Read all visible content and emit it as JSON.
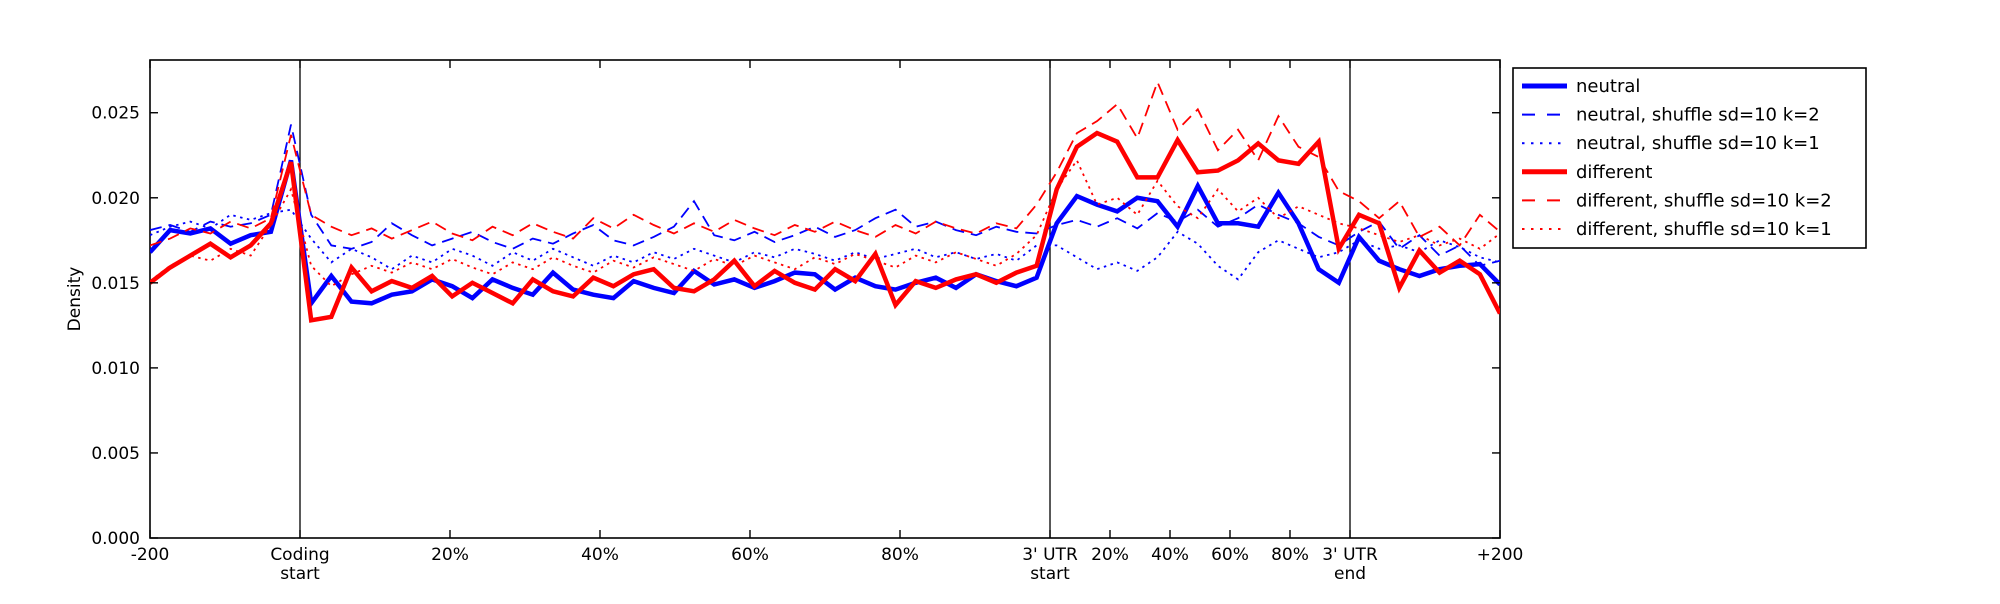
{
  "figure": {
    "background": "#ffffff",
    "title": ""
  },
  "chart_data": {
    "type": "line",
    "title": "",
    "xlabel": "",
    "ylabel": "Density",
    "grid": false,
    "legend_position": "outside-right",
    "ylim": [
      0,
      0.0281
    ],
    "yticks": {
      "values": [
        0.0,
        0.005,
        0.01,
        0.015,
        0.02,
        0.025
      ],
      "labels": [
        "0.000",
        "0.005",
        "0.010",
        "0.015",
        "0.020",
        "0.025"
      ]
    },
    "x_axis": {
      "kind": "composite-fraction",
      "note": "x axis is a metagene composite: -200nt .. coding start, CDS 0-100%, 3' UTR 0-100%, 3' UTR end .. +200nt; tick positions given as fraction 0..1 of plot width",
      "ticks": [
        {
          "f": 0.0,
          "lines": [
            "-200"
          ]
        },
        {
          "f": 0.11111,
          "lines": [
            "Coding",
            "start"
          ]
        },
        {
          "f": 0.22222,
          "lines": [
            "20%"
          ]
        },
        {
          "f": 0.33333,
          "lines": [
            "40%"
          ]
        },
        {
          "f": 0.44444,
          "lines": [
            "60%"
          ]
        },
        {
          "f": 0.55556,
          "lines": [
            "80%"
          ]
        },
        {
          "f": 0.66667,
          "lines": [
            "3' UTR",
            "start"
          ]
        },
        {
          "f": 0.71111,
          "lines": [
            "20%"
          ]
        },
        {
          "f": 0.75556,
          "lines": [
            "40%"
          ]
        },
        {
          "f": 0.8,
          "lines": [
            "60%"
          ]
        },
        {
          "f": 0.84444,
          "lines": [
            "80%"
          ]
        },
        {
          "f": 0.88889,
          "lines": [
            "3' UTR",
            "end"
          ]
        },
        {
          "f": 1.0,
          "lines": [
            "+200"
          ]
        }
      ],
      "vlines": [
        {
          "f": 0.11111,
          "label": "Coding start"
        },
        {
          "f": 0.66667,
          "label": "3' UTR start"
        },
        {
          "f": 0.88889,
          "label": "3' UTR end"
        }
      ]
    },
    "x_sampling": "y arrays are sampled uniformly in fraction 0..1 across the plot width",
    "series": [
      {
        "label": "neutral",
        "color": "#0000ff",
        "style": "solid",
        "width": "thick",
        "y": [
          0.0168,
          0.0181,
          0.0179,
          0.0182,
          0.0173,
          0.0178,
          0.018,
          0.0222,
          0.0138,
          0.0154,
          0.0139,
          0.0138,
          0.0143,
          0.0145,
          0.0152,
          0.0148,
          0.0141,
          0.0152,
          0.0147,
          0.0143,
          0.0156,
          0.0146,
          0.0143,
          0.0141,
          0.0151,
          0.0147,
          0.0144,
          0.0157,
          0.0149,
          0.0152,
          0.0147,
          0.0151,
          0.0156,
          0.0155,
          0.0146,
          0.0153,
          0.0148,
          0.0146,
          0.015,
          0.0153,
          0.0147,
          0.0155,
          0.0151,
          0.0148,
          0.0153,
          0.0185,
          0.0201,
          0.0196,
          0.0192,
          0.02,
          0.0198,
          0.0183,
          0.0207,
          0.0185,
          0.0185,
          0.0183,
          0.0203,
          0.0185,
          0.0158,
          0.015,
          0.0177,
          0.0163,
          0.0158,
          0.0154,
          0.0158,
          0.016,
          0.0161,
          0.0149
        ]
      },
      {
        "label": "neutral, shuffle sd=10 k=2",
        "color": "#0000ff",
        "style": "dashed",
        "width": "thin",
        "y": [
          0.0181,
          0.0184,
          0.018,
          0.0186,
          0.0183,
          0.0185,
          0.019,
          0.0243,
          0.019,
          0.0172,
          0.017,
          0.0174,
          0.0185,
          0.0178,
          0.0172,
          0.0176,
          0.018,
          0.0174,
          0.017,
          0.0176,
          0.0173,
          0.0179,
          0.0184,
          0.0175,
          0.0172,
          0.0177,
          0.0183,
          0.0198,
          0.0178,
          0.0175,
          0.018,
          0.0174,
          0.0178,
          0.0183,
          0.0177,
          0.0181,
          0.0188,
          0.0193,
          0.0183,
          0.0186,
          0.0181,
          0.0178,
          0.0183,
          0.018,
          0.0179,
          0.0184,
          0.0187,
          0.0183,
          0.0188,
          0.0182,
          0.0191,
          0.0186,
          0.0193,
          0.0183,
          0.0188,
          0.0196,
          0.019,
          0.0185,
          0.0177,
          0.0172,
          0.018,
          0.0186,
          0.017,
          0.0178,
          0.0166,
          0.0172,
          0.016,
          0.0163
        ]
      },
      {
        "label": "neutral, shuffle sd=10 k=1",
        "color": "#0000ff",
        "style": "dotted",
        "width": "thin",
        "y": [
          0.0178,
          0.0183,
          0.0186,
          0.0182,
          0.019,
          0.0187,
          0.0191,
          0.0193,
          0.0176,
          0.0162,
          0.017,
          0.0165,
          0.0158,
          0.0166,
          0.0162,
          0.017,
          0.0166,
          0.016,
          0.0168,
          0.0163,
          0.017,
          0.0165,
          0.016,
          0.0166,
          0.0162,
          0.0168,
          0.0164,
          0.017,
          0.0166,
          0.0162,
          0.0168,
          0.0165,
          0.017,
          0.0167,
          0.0163,
          0.0168,
          0.0164,
          0.0167,
          0.017,
          0.0165,
          0.0168,
          0.0164,
          0.0167,
          0.0163,
          0.0172,
          0.0172,
          0.0165,
          0.0158,
          0.0162,
          0.0157,
          0.0165,
          0.018,
          0.0173,
          0.016,
          0.0152,
          0.0168,
          0.0175,
          0.017,
          0.0165,
          0.0168,
          0.0175,
          0.017,
          0.0172,
          0.0168,
          0.0175,
          0.0171,
          0.0165,
          0.0162
        ]
      },
      {
        "label": "different",
        "color": "#ff0000",
        "style": "solid",
        "width": "thick",
        "y": [
          0.015,
          0.0159,
          0.0166,
          0.0173,
          0.0165,
          0.0172,
          0.0185,
          0.0221,
          0.0128,
          0.013,
          0.0159,
          0.0145,
          0.0151,
          0.0147,
          0.0154,
          0.0142,
          0.015,
          0.0144,
          0.0138,
          0.0152,
          0.0145,
          0.0142,
          0.0153,
          0.0148,
          0.0155,
          0.0158,
          0.0147,
          0.0145,
          0.0152,
          0.0163,
          0.0148,
          0.0157,
          0.015,
          0.0146,
          0.0158,
          0.0151,
          0.0167,
          0.0137,
          0.0151,
          0.0147,
          0.0152,
          0.0155,
          0.015,
          0.0156,
          0.016,
          0.0205,
          0.023,
          0.0238,
          0.0233,
          0.0212,
          0.0212,
          0.0234,
          0.0215,
          0.0216,
          0.0222,
          0.0232,
          0.0222,
          0.022,
          0.0233,
          0.017,
          0.019,
          0.0185,
          0.0147,
          0.0169,
          0.0156,
          0.0163,
          0.0155,
          0.0132
        ]
      },
      {
        "label": "different, shuffle sd=10 k=2",
        "color": "#ff0000",
        "style": "dashed",
        "width": "thin",
        "y": [
          0.0172,
          0.0176,
          0.0182,
          0.0179,
          0.0186,
          0.0182,
          0.0188,
          0.0237,
          0.019,
          0.0183,
          0.0178,
          0.0182,
          0.0176,
          0.0181,
          0.0186,
          0.0179,
          0.0175,
          0.0183,
          0.0178,
          0.0185,
          0.018,
          0.0176,
          0.0188,
          0.0182,
          0.019,
          0.0184,
          0.0179,
          0.0185,
          0.018,
          0.0187,
          0.0182,
          0.0178,
          0.0184,
          0.018,
          0.0186,
          0.0181,
          0.0177,
          0.0184,
          0.0179,
          0.0186,
          0.0182,
          0.0179,
          0.0185,
          0.0182,
          0.0196,
          0.0215,
          0.0238,
          0.0245,
          0.0255,
          0.0235,
          0.0268,
          0.024,
          0.0252,
          0.0228,
          0.024,
          0.0222,
          0.0248,
          0.023,
          0.0224,
          0.0204,
          0.0198,
          0.0188,
          0.0198,
          0.0177,
          0.0183,
          0.0172,
          0.019,
          0.018
        ]
      },
      {
        "label": "different, shuffle sd=10 k=1",
        "color": "#ff0000",
        "style": "dotted",
        "width": "thin",
        "y": [
          0.0151,
          0.016,
          0.0166,
          0.0163,
          0.017,
          0.0166,
          0.0184,
          0.0205,
          0.016,
          0.0148,
          0.0155,
          0.016,
          0.0156,
          0.0162,
          0.0158,
          0.0164,
          0.0159,
          0.0155,
          0.0162,
          0.0158,
          0.0165,
          0.016,
          0.0156,
          0.0163,
          0.0159,
          0.0165,
          0.0161,
          0.0157,
          0.0164,
          0.016,
          0.0166,
          0.0162,
          0.0158,
          0.0165,
          0.0161,
          0.0167,
          0.0163,
          0.0159,
          0.0166,
          0.0162,
          0.0168,
          0.0164,
          0.016,
          0.0167,
          0.0178,
          0.0205,
          0.0222,
          0.0196,
          0.02,
          0.019,
          0.021,
          0.0195,
          0.0188,
          0.0205,
          0.0192,
          0.02,
          0.0188,
          0.0195,
          0.019,
          0.0185,
          0.0182,
          0.0178,
          0.0174,
          0.0178,
          0.0172,
          0.0176,
          0.017,
          0.0179
        ]
      }
    ],
    "axis_color": "#000000"
  }
}
